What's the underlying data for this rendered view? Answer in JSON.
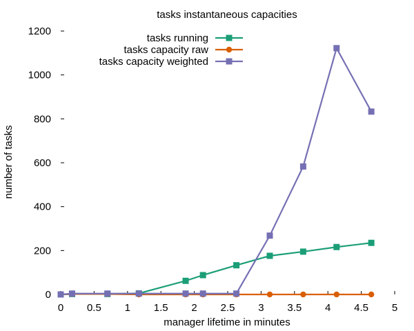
{
  "chart_data": {
    "type": "line",
    "title": "tasks instantaneous capacities",
    "xlabel": "manager lifetime in minutes",
    "ylabel": "number of tasks",
    "xlim": [
      0,
      5
    ],
    "ylim": [
      0,
      1200
    ],
    "xticks": [
      "0",
      "0.5",
      "1",
      "1.5",
      "2",
      "2.5",
      "3",
      "3.5",
      "4",
      "4.5",
      "5"
    ],
    "yticks": [
      "0",
      "200",
      "400",
      "600",
      "800",
      "1000",
      "1200"
    ],
    "legend_position": "top-center",
    "grid": false,
    "series": [
      {
        "name": "tasks running",
        "color": "#1b9e77",
        "marker": "square",
        "x": [
          0,
          0.17,
          0.7,
          1.17,
          1.87,
          2.13,
          2.63,
          3.13,
          3.63,
          4.13,
          4.65
        ],
        "y": [
          0,
          2,
          2,
          5,
          62,
          88,
          133,
          176,
          195,
          216,
          235
        ]
      },
      {
        "name": "tasks capacity raw",
        "color": "#d95f02",
        "marker": "circle",
        "x": [
          0,
          0.17,
          0.7,
          1.17,
          1.87,
          2.13,
          2.63,
          3.13,
          3.63,
          4.13,
          4.65
        ],
        "y": [
          0,
          2,
          2,
          0,
          0,
          0,
          0,
          0,
          0,
          0,
          0
        ]
      },
      {
        "name": "tasks capacity weighted",
        "color": "#7570b3",
        "marker": "square",
        "x": [
          0,
          0.17,
          0.7,
          1.17,
          1.87,
          2.13,
          2.63,
          3.13,
          3.63,
          4.13,
          4.65
        ],
        "y": [
          0,
          4,
          4,
          4,
          4,
          4,
          4,
          268,
          583,
          1122,
          833
        ]
      }
    ]
  }
}
